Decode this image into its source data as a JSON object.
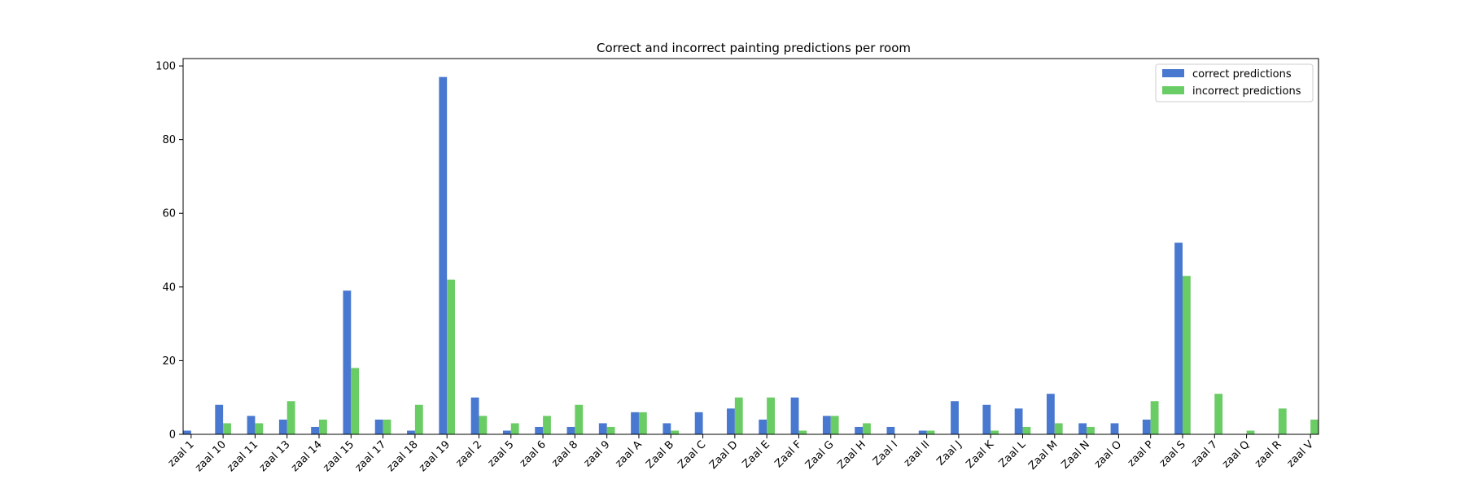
{
  "chart_data": {
    "type": "bar",
    "title": "Correct and incorrect painting predictions per room",
    "xlabel": "",
    "ylabel": "",
    "ylim": [
      0,
      102
    ],
    "yticks": [
      0,
      20,
      40,
      60,
      80,
      100
    ],
    "grid": false,
    "legend_position": "top-right",
    "categories": [
      "zaal 1",
      "zaal 10",
      "zaal 11",
      "zaal 13",
      "zaal 14",
      "zaal 15",
      "zaal 17",
      "zaal 18",
      "zaal 19",
      "zaal 2",
      "zaal 5",
      "zaal 6",
      "zaal 8",
      "zaal 9",
      "zaal A",
      "Zaal B",
      "Zaal C",
      "Zaal D",
      "Zaal E",
      "Zaal F",
      "Zaal G",
      "Zaal H",
      "Zaal I",
      "zaal II",
      "Zaal J",
      "Zaal K",
      "Zaal L",
      "Zaal M",
      "Zaal N",
      "zaal O",
      "zaal P",
      "zaal S",
      "zaal 7",
      "zaal Q",
      "zaal R",
      "zaal V"
    ],
    "series": [
      {
        "name": "correct predictions",
        "color": "#4878d0",
        "values": [
          1,
          8,
          5,
          4,
          2,
          39,
          4,
          1,
          97,
          10,
          1,
          2,
          2,
          3,
          6,
          3,
          6,
          7,
          4,
          10,
          5,
          2,
          2,
          1,
          9,
          8,
          7,
          11,
          3,
          3,
          4,
          52,
          0,
          0,
          0,
          0
        ]
      },
      {
        "name": "incorrect predictions",
        "color": "#6acc64",
        "values": [
          0,
          3,
          3,
          9,
          4,
          18,
          4,
          8,
          42,
          5,
          3,
          5,
          8,
          2,
          6,
          1,
          0,
          10,
          10,
          1,
          5,
          3,
          0,
          1,
          0,
          1,
          2,
          3,
          2,
          0,
          9,
          43,
          11,
          1,
          7,
          4
        ]
      }
    ]
  }
}
